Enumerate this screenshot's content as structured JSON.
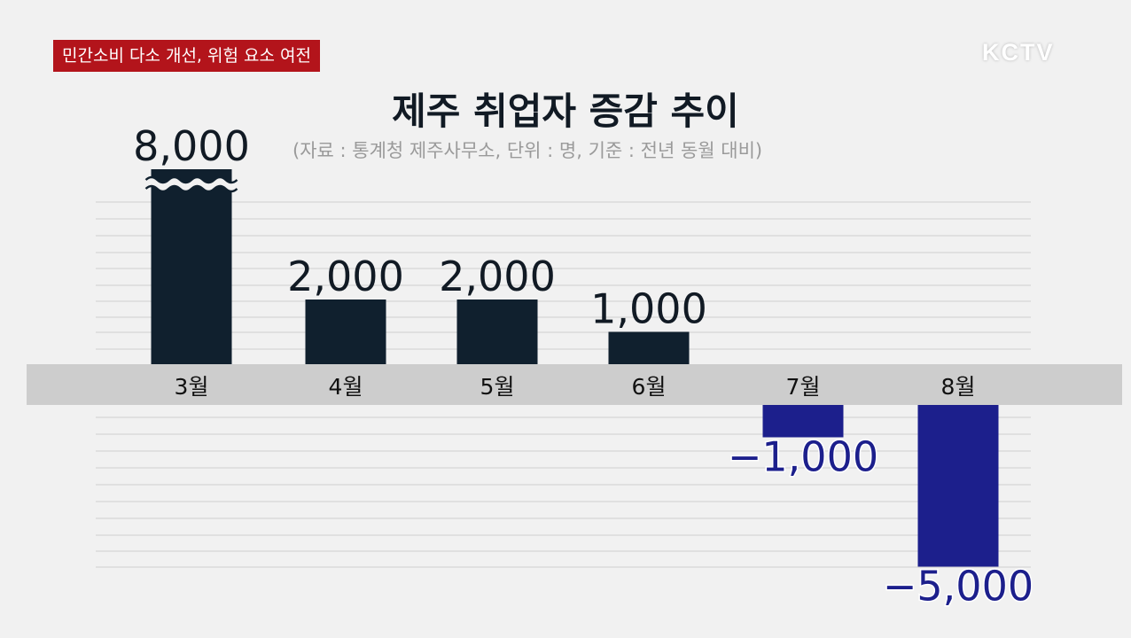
{
  "caption": "민간소비 다소 개선, 위험 요소 여전",
  "logo": "KCTV",
  "chart_data": {
    "type": "bar",
    "title": "제주 취업자 증감 추이",
    "subtitle": "(자료 : 통계청 제주사무소, 단위 : 명, 기준 : 전년 동월 대비)",
    "categories": [
      "3월",
      "4월",
      "5월",
      "6월",
      "7월",
      "8월"
    ],
    "values": [
      8000,
      2000,
      2000,
      1000,
      -1000,
      -5000
    ],
    "value_labels": [
      "8,000",
      "2,000",
      "2,000",
      "1,000",
      "−1,000",
      "−5,000"
    ],
    "axis_break_on": "3월",
    "colors": {
      "positive": "#10202e",
      "negative": "#1c1f8c",
      "label_positive": "#111a24",
      "label_negative": "#1c1f8c"
    },
    "grid": true
  }
}
